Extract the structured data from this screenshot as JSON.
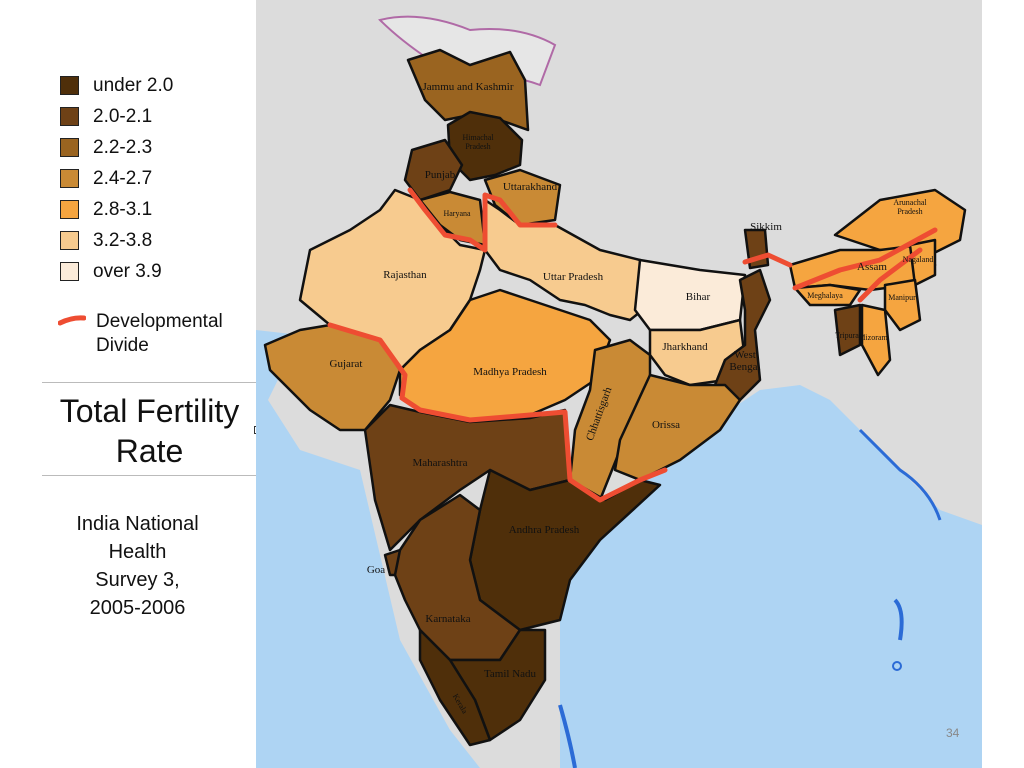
{
  "legend": {
    "items": [
      {
        "label": "under 2.0",
        "color": "#4f2f0a"
      },
      {
        "label": "2.0-2.1",
        "color": "#6e4116"
      },
      {
        "label": "2.2-2.3",
        "color": "#9a6420"
      },
      {
        "label": "2.4-2.7",
        "color": "#c98a35"
      },
      {
        "label": "2.8-3.1",
        "color": "#f5a540"
      },
      {
        "label": "3.2-3.8",
        "color": "#f7cb8f"
      },
      {
        "label": "over 3.9",
        "color": "#fbebd9"
      }
    ],
    "divide_label": "Developmental\nDivide",
    "divide_color": "#ee4d32"
  },
  "title": "Total Fertility\nRate",
  "source": "India National\nHealth\nSurvey 3,\n2005-2006",
  "page_number": "34",
  "colors": {
    "sea": "#aed4f3",
    "land": "#dcdcdc",
    "neighbor_border": "#2b6bd6",
    "kashmir_outline": "#b06aa6"
  },
  "regions": {
    "jammu_kashmir": "Jammu and Kashmir",
    "himachal": "Himachal\nPradesh",
    "punjab": "Punjab",
    "uttarakhand": "Uttarakhand",
    "haryana": "Haryana",
    "rajasthan": "Rajasthan",
    "uttar_pradesh": "Uttar Pradesh",
    "bihar": "Bihar",
    "sikkim": "Sikkim",
    "arunachal": "Arunachal\nPradesh",
    "assam": "Assam",
    "meghalaya": "Meghalaya",
    "nagaland": "Nagaland",
    "manipur": "Manipur",
    "tripura": "Tripura",
    "mizoram": "Mizoram",
    "gujarat": "Gujarat",
    "madhya_pradesh": "Madhya Pradesh",
    "jharkhand": "Jharkhand",
    "west_bengal": "West\nBengal",
    "chhattisgarh": "Chhattisgarh",
    "orissa": "Orissa",
    "maharashtra": "Maharashtra",
    "andhra_pradesh": "Andhra Pradesh",
    "goa": "Goa",
    "karnataka": "Karnataka",
    "tamil_nadu": "Tamil Nadu",
    "kerala": "Kerala"
  }
}
